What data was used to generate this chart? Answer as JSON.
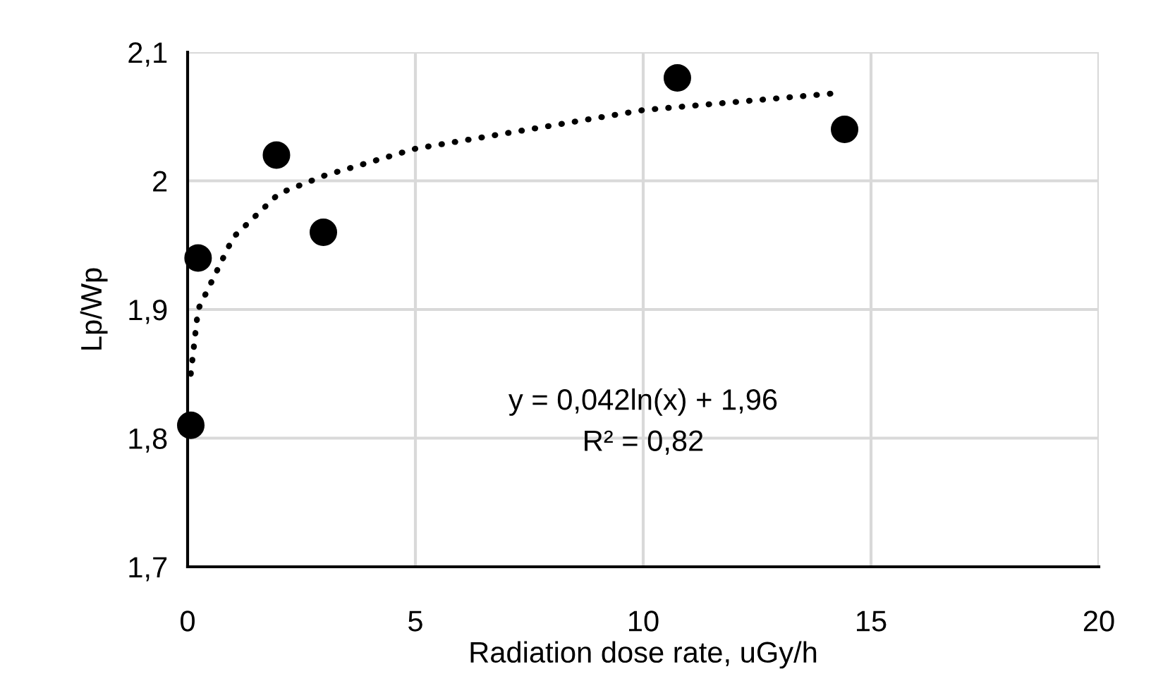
{
  "chart_data": {
    "type": "scatter",
    "xlabel": "Radiation dose rate, uGy/h",
    "ylabel": "Lp/Wp",
    "xlim": [
      0,
      20
    ],
    "ylim": [
      1.7,
      2.1
    ],
    "xticks": [
      0,
      5,
      10,
      15,
      20
    ],
    "yticks": [
      {
        "value": 1.7,
        "label": "1,7"
      },
      {
        "value": 1.8,
        "label": "1,8"
      },
      {
        "value": 1.9,
        "label": "1,9"
      },
      2,
      {
        "value": 2.1,
        "label": "2,1"
      }
    ],
    "grid": true,
    "legend": false,
    "series": [
      {
        "color": "#000000",
        "marker": "circle",
        "x": [
          0.07,
          0.23,
          1.95,
          2.98,
          10.75,
          14.42
        ],
        "values": [
          1.81,
          1.94,
          2.02,
          1.96,
          2.08,
          2.04
        ]
      },
      {
        "type": "line",
        "color": "#000000",
        "marker": "none",
        "line_style": "dotted",
        "x": [
          0.07,
          0.23,
          1,
          2,
          3,
          5,
          10,
          14.2
        ],
        "values": [
          1.85,
          1.9,
          1.956,
          1.99,
          2.004,
          2.025,
          2.055,
          2.068
        ]
      }
    ],
    "annotations": [
      "y = 0,042ln(x) + 1,96",
      "R² = 0,82"
    ]
  }
}
